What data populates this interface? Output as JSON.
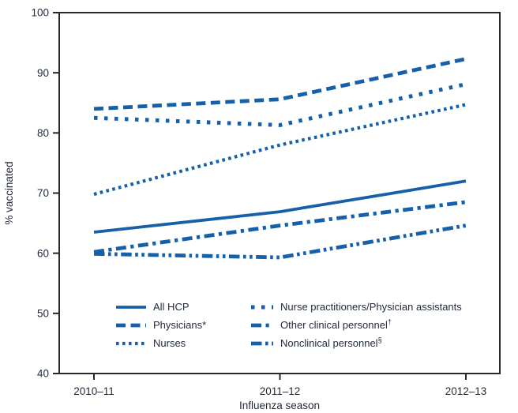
{
  "colors": {
    "line_blue": "#1560a8",
    "axis": "#2b2824",
    "text": "#232b3c",
    "background": "#ffffff"
  },
  "chart_data": {
    "type": "line",
    "title": "",
    "xlabel": "Influenza season",
    "ylabel": "% vaccinated",
    "ylim": [
      40,
      100
    ],
    "y_ticks": [
      40,
      50,
      60,
      70,
      80,
      90,
      100
    ],
    "grid": false,
    "legend_position": "inside-bottom-center",
    "categories": [
      "2010–11",
      "2011–12",
      "2012–13"
    ],
    "series": [
      {
        "name": "All HCP",
        "sup": "",
        "style": "solid",
        "values": [
          63.5,
          66.9,
          72.0
        ]
      },
      {
        "name": "Physicians*",
        "sup": "",
        "style": "dashed",
        "values": [
          84.0,
          85.6,
          92.3
        ]
      },
      {
        "name": "Nurses",
        "sup": "",
        "style": "dotted",
        "values": [
          69.8,
          78.0,
          84.7
        ]
      },
      {
        "name": "Nurse practitioners/Physician assistants",
        "sup": "",
        "style": "square-dotted",
        "values": [
          82.5,
          81.3,
          88.1
        ]
      },
      {
        "name": "Other clinical personnel",
        "sup": "†",
        "style": "dash-dot",
        "values": [
          60.2,
          64.6,
          68.5
        ]
      },
      {
        "name": "Nonclinical personnel",
        "sup": "§",
        "style": "dash-dot-dot",
        "values": [
          59.9,
          59.3,
          64.6
        ]
      }
    ]
  }
}
